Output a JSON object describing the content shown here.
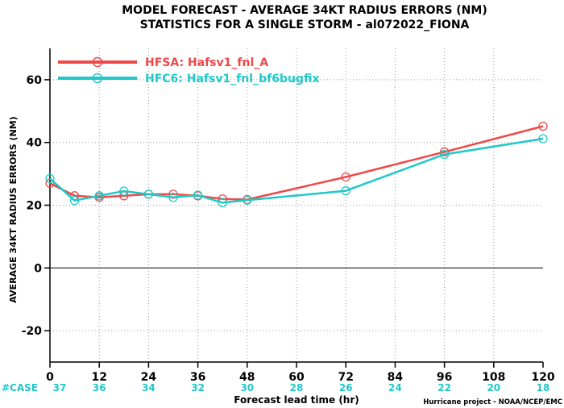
{
  "chart_data": {
    "type": "line",
    "title": "MODEL FORECAST - AVERAGE 34KT RADIUS ERRORS (NM)",
    "subtitle": "STATISTICS FOR A SINGLE STORM - al072022_FIONA",
    "xlabel": "Forecast lead time (hr)",
    "ylabel": "AVERAGE 34KT RADIUS ERRORS (NM)",
    "xlim": [
      0,
      120
    ],
    "ylim": [
      -30,
      70
    ],
    "x_ticks": [
      0,
      12,
      24,
      36,
      48,
      60,
      72,
      84,
      96,
      108,
      120
    ],
    "y_ticks": [
      -20,
      0,
      20,
      40,
      60
    ],
    "grid": true,
    "legend_position": "top-left",
    "series": [
      {
        "name": "HFSA: Hafsv1_fnl_A",
        "color": "#f04848",
        "x": [
          0,
          6,
          12,
          18,
          24,
          30,
          36,
          42,
          48,
          72,
          96,
          120
        ],
        "y": [
          27,
          23,
          22.5,
          23,
          23.5,
          23.5,
          23,
          22,
          21.8,
          29,
          37,
          45.2
        ]
      },
      {
        "name": "HFC6: Hafsv1_fnl_bf6bugfix",
        "color": "#20c8c8",
        "x": [
          0,
          6,
          12,
          18,
          24,
          30,
          36,
          42,
          48,
          72,
          96,
          120
        ],
        "y": [
          28.5,
          21.5,
          23,
          24.5,
          23.5,
          22.5,
          23.2,
          20.8,
          21.6,
          24.6,
          36.2,
          41.2
        ]
      }
    ],
    "cases_label": "#CASE",
    "cases": [
      {
        "x": 0,
        "n": "37"
      },
      {
        "x": 12,
        "n": "36"
      },
      {
        "x": 24,
        "n": "34"
      },
      {
        "x": 36,
        "n": "32"
      },
      {
        "x": 48,
        "n": "30"
      },
      {
        "x": 60,
        "n": "28"
      },
      {
        "x": 72,
        "n": "26"
      },
      {
        "x": 84,
        "n": "24"
      },
      {
        "x": 96,
        "n": "22"
      },
      {
        "x": 108,
        "n": "20"
      },
      {
        "x": 120,
        "n": "18"
      }
    ],
    "credit": "Hurricane project - NOAA/NCEP/EMC",
    "case_color": "#20c8c8"
  }
}
